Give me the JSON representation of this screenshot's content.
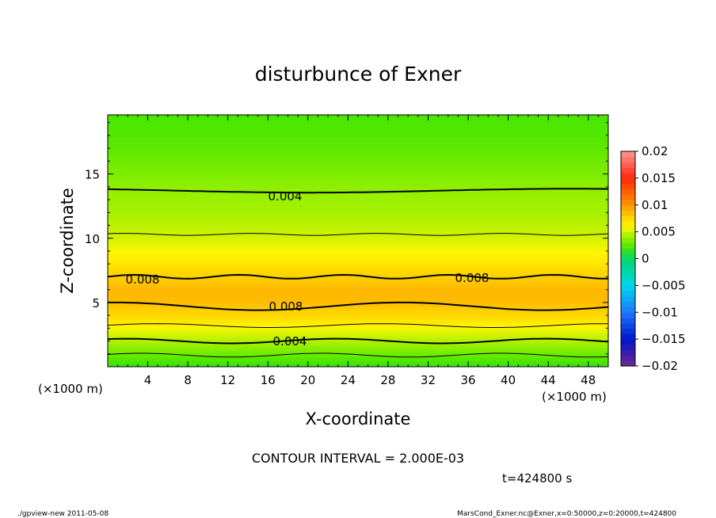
{
  "chart_data": {
    "type": "heatmap",
    "title": "disturbunce of Exner",
    "xlabel": "X-coordinate",
    "ylabel": "Z-coordinate",
    "x_unit": "(×1000 m)",
    "z_unit": "(×1000 m)",
    "xlim": [
      0,
      50
    ],
    "ylim": [
      0,
      19.6
    ],
    "x_ticks": [
      4,
      8,
      12,
      16,
      20,
      24,
      28,
      32,
      36,
      40,
      44,
      48
    ],
    "y_ticks": [
      5,
      10,
      15
    ],
    "colorbar": {
      "ticks": [
        "0.02",
        "0.015",
        "0.01",
        "0.005",
        "0",
        "−0.005",
        "−0.01",
        "−0.015",
        "−0.02"
      ],
      "range": [
        -0.02,
        0.02
      ]
    },
    "contour_interval_text": "CONTOUR INTERVAL = 2.000E-03",
    "time_text": "t=424800 s",
    "contour_labels": [
      "0.004",
      "0.008",
      "0.008",
      "0.008",
      "0.004"
    ],
    "vertical_profile": {
      "z": [
        0,
        1,
        2,
        3,
        4,
        5,
        6,
        7,
        8,
        9,
        10,
        11,
        12,
        13,
        14,
        15,
        16,
        17,
        18,
        19.6
      ],
      "value": [
        0.0015,
        0.003,
        0.0045,
        0.0058,
        0.0074,
        0.0086,
        0.0088,
        0.0079,
        0.0068,
        0.0059,
        0.0052,
        0.0047,
        0.0043,
        0.0041,
        0.0038,
        0.0034,
        0.003,
        0.0026,
        0.0023,
        0.0021
      ]
    }
  },
  "footer": {
    "left": "./gpview-new  2011-05-08",
    "right": "MarsCond_Exner.nc@Exner,x=0:50000,z=0:20000,t=424800"
  }
}
